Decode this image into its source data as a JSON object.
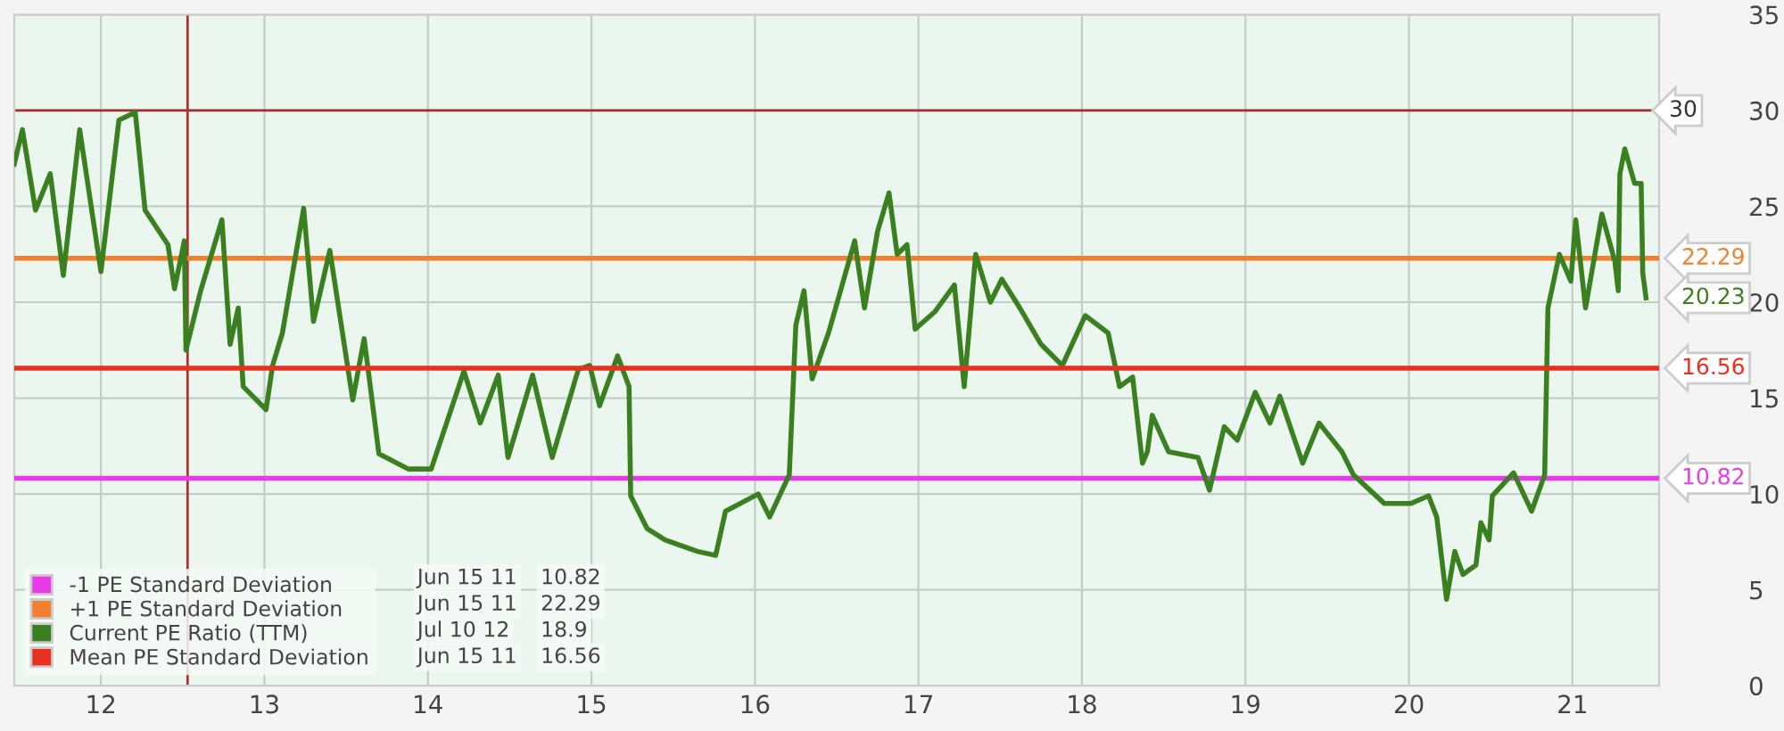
{
  "chart_data": {
    "type": "line",
    "xlim": [
      11.47,
      21.53
    ],
    "xticks": [
      12,
      13,
      14,
      15,
      16,
      17,
      18,
      19,
      20,
      21
    ],
    "ylim": [
      0,
      35
    ],
    "yticks": [
      0,
      5,
      10,
      15,
      20,
      25,
      30,
      35
    ],
    "grid": true,
    "legend": "bottom left",
    "marker": "none",
    "line_style": "solid",
    "series": [
      {
        "name": "-1 PE Standard Deviation",
        "color": "#e83ae8",
        "x": [
          11.47,
          21.53
        ],
        "values": [
          10.82,
          10.82
        ],
        "value_labels": [
          null,
          "10.82"
        ]
      },
      {
        "name": "+1 PE Standard Deviation",
        "color": "#f08030",
        "x": [
          11.47,
          21.53
        ],
        "values": [
          22.29,
          22.29
        ],
        "value_labels": [
          null,
          "22.29"
        ]
      },
      {
        "name": "Current PE Ratio (TTM)",
        "color": "#3a8020",
        "x": [
          11.47,
          11.52,
          11.6,
          11.69,
          11.77,
          11.87,
          12.0,
          12.11,
          12.21,
          12.27,
          12.41,
          12.45,
          12.51,
          12.52,
          12.61,
          12.74,
          12.79,
          12.84,
          12.87,
          13.01,
          13.05,
          13.11,
          13.24,
          13.3,
          13.4,
          13.54,
          13.61,
          13.7,
          13.88,
          14.02,
          14.22,
          14.32,
          14.43,
          14.49,
          14.64,
          14.76,
          14.92,
          14.99,
          15.05,
          15.16,
          15.23,
          15.24,
          15.34,
          15.45,
          15.65,
          15.76,
          15.82,
          16.02,
          16.09,
          16.21,
          16.25,
          16.3,
          16.35,
          16.45,
          16.61,
          16.67,
          16.75,
          16.82,
          16.87,
          16.93,
          16.98,
          17.1,
          17.22,
          17.28,
          17.35,
          17.44,
          17.51,
          17.62,
          17.75,
          17.88,
          18.02,
          18.16,
          18.23,
          18.31,
          18.37,
          18.4,
          18.43,
          18.53,
          18.71,
          18.78,
          18.87,
          18.95,
          19.06,
          19.15,
          19.21,
          19.35,
          19.45,
          19.59,
          19.66,
          19.85,
          20.01,
          20.12,
          20.17,
          20.23,
          20.28,
          20.33,
          20.41,
          20.44,
          20.49,
          20.51,
          20.64,
          20.75,
          20.83,
          20.85,
          20.92,
          20.99,
          21.02,
          21.08,
          21.18,
          21.26,
          21.28,
          21.29,
          21.32,
          21.38,
          21.42,
          21.43,
          21.45
        ],
        "values": [
          27.2,
          29.0,
          24.8,
          26.7,
          21.4,
          29.0,
          21.6,
          29.5,
          29.9,
          24.8,
          23.0,
          20.7,
          23.2,
          17.5,
          20.6,
          24.3,
          17.8,
          19.7,
          15.6,
          14.4,
          16.7,
          18.4,
          24.9,
          19.0,
          22.7,
          14.9,
          18.1,
          12.1,
          11.3,
          11.3,
          16.4,
          13.7,
          16.2,
          11.9,
          16.2,
          11.9,
          16.5,
          16.7,
          14.6,
          17.2,
          15.6,
          9.9,
          8.2,
          7.6,
          7.0,
          6.8,
          9.1,
          10.0,
          8.8,
          11.0,
          18.8,
          20.6,
          16.0,
          18.4,
          23.2,
          19.7,
          23.7,
          25.7,
          22.5,
          23.0,
          18.6,
          19.5,
          20.9,
          15.6,
          22.5,
          20.0,
          21.2,
          19.7,
          17.8,
          16.7,
          19.3,
          18.4,
          15.6,
          16.1,
          11.6,
          12.2,
          14.1,
          12.2,
          11.9,
          10.2,
          13.5,
          12.8,
          15.3,
          13.7,
          15.1,
          11.6,
          13.7,
          12.2,
          11.0,
          9.5,
          9.5,
          9.9,
          8.8,
          4.5,
          7.0,
          5.8,
          6.3,
          8.5,
          7.6,
          9.9,
          11.1,
          9.1,
          11.0,
          19.7,
          22.5,
          21.1,
          24.3,
          19.7,
          24.6,
          22.1,
          20.6,
          26.7,
          28.0,
          26.2,
          26.2,
          21.5,
          20.23
        ],
        "value_labels": [
          null,
          null,
          null,
          null,
          null,
          null,
          null,
          null,
          null,
          null,
          null,
          null,
          null,
          null,
          null,
          null,
          null,
          null,
          null,
          null,
          null,
          null,
          null,
          null,
          null,
          null,
          null,
          null,
          null,
          null,
          null,
          null,
          null,
          null,
          null,
          null,
          null,
          null,
          null,
          null,
          null,
          null,
          null,
          null,
          null,
          null,
          null,
          null,
          null,
          null,
          null,
          null,
          null,
          null,
          null,
          null,
          null,
          null,
          null,
          null,
          null,
          null,
          null,
          null,
          null,
          null,
          null,
          null,
          null,
          null,
          null,
          null,
          null,
          null,
          null,
          null,
          null,
          null,
          null,
          null,
          null,
          null,
          null,
          null,
          null,
          null,
          null,
          null,
          null,
          null,
          null,
          null,
          null,
          null,
          null,
          null,
          null,
          null,
          null,
          null,
          null,
          null,
          null,
          null,
          null,
          null,
          null,
          null,
          null,
          null,
          null,
          null,
          null,
          null,
          null,
          null,
          "20.23"
        ]
      },
      {
        "name": "Mean PE Standard Deviation",
        "color": "#e83020",
        "x": [
          11.47,
          21.53
        ],
        "values": [
          16.56,
          16.56
        ],
        "value_labels": [
          null,
          "16.56"
        ]
      }
    ],
    "ref_lines": [
      {
        "axis": "y",
        "value": 30,
        "label": "30",
        "color": "#a03030"
      },
      {
        "axis": "x",
        "value": 12.53,
        "color": "#b03030"
      }
    ],
    "annotations": [
      "Jun 15 11",
      "10.82",
      "Jun 15 11",
      "22.29",
      "Jul 10 12",
      "18.9",
      "Jun 15 11",
      "16.56"
    ]
  }
}
